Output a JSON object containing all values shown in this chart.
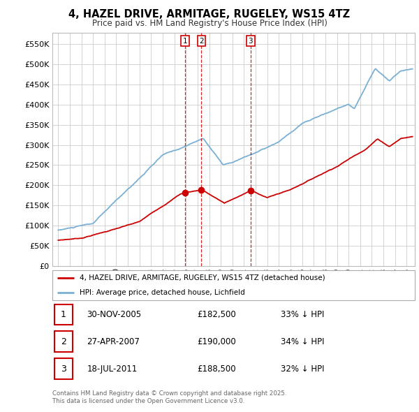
{
  "title": "4, HAZEL DRIVE, ARMITAGE, RUGELEY, WS15 4TZ",
  "subtitle": "Price paid vs. HM Land Registry's House Price Index (HPI)",
  "legend_property": "4, HAZEL DRIVE, ARMITAGE, RUGELEY, WS15 4TZ (detached house)",
  "legend_hpi": "HPI: Average price, detached house, Lichfield",
  "ytick_values": [
    0,
    50000,
    100000,
    150000,
    200000,
    250000,
    300000,
    350000,
    400000,
    450000,
    500000,
    550000
  ],
  "ytick_labels": [
    "£0",
    "£50K",
    "£100K",
    "£150K",
    "£200K",
    "£250K",
    "£300K",
    "£350K",
    "£400K",
    "£450K",
    "£500K",
    "£550K"
  ],
  "ylim": [
    0,
    578000
  ],
  "xlim_start": 1994.5,
  "xlim_end": 2025.7,
  "property_color": "#cc0000",
  "hpi_color": "#7ab0d4",
  "background_color": "#ffffff",
  "grid_color": "#cccccc",
  "purchases": [
    {
      "num": 1,
      "date": "30-NOV-2005",
      "price": 182500,
      "year": 2005.92,
      "pct": "33%",
      "dir": "↓"
    },
    {
      "num": 2,
      "date": "27-APR-2007",
      "price": 190000,
      "year": 2007.33,
      "pct": "34%",
      "dir": "↓"
    },
    {
      "num": 3,
      "date": "18-JUL-2011",
      "price": 188500,
      "year": 2011.55,
      "pct": "32%",
      "dir": "↓"
    }
  ],
  "footer_line1": "Contains HM Land Registry data © Crown copyright and database right 2025.",
  "footer_line2": "This data is licensed under the Open Government Licence v3.0."
}
